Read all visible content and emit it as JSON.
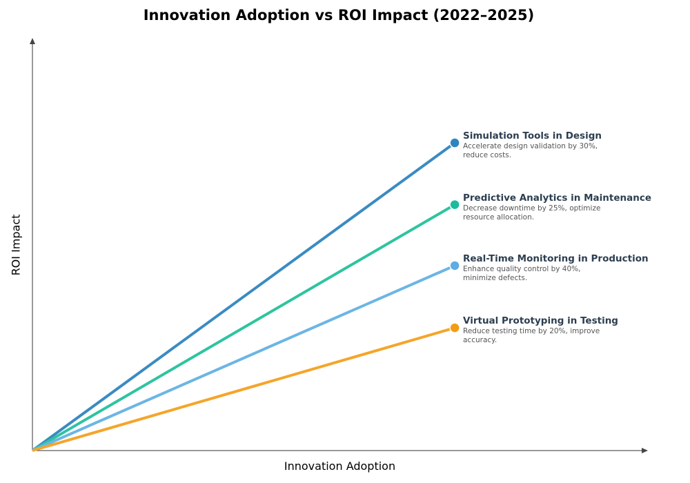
{
  "chart_data": {
    "type": "line",
    "title": "Innovation Adoption vs ROI Impact (2022–2025)",
    "xlabel": "Innovation Adoption",
    "ylabel": "ROI Impact",
    "xlim": [
      0,
      1
    ],
    "ylim": [
      0,
      1
    ],
    "grid": false,
    "legend": "none (inline annotations at line ends)",
    "series": [
      {
        "name": "Simulation Tools in Design",
        "description": "Accelerate design validation by 30%, reduce costs.",
        "color": "#2e86c1",
        "x": [
          0,
          0.687
        ],
        "y": [
          0,
          0.747
        ]
      },
      {
        "name": "Predictive Analytics in Maintenance",
        "description": "Decrease downtime by 25%, optimize resource allocation.",
        "color": "#1abc9c",
        "x": [
          0,
          0.687
        ],
        "y": [
          0,
          0.597
        ]
      },
      {
        "name": "Real-Time Monitoring in Production",
        "description": "Enhance quality control by 40%, minimize defects.",
        "color": "#5dade2",
        "x": [
          0,
          0.687
        ],
        "y": [
          0,
          0.449
        ]
      },
      {
        "name": "Virtual Prototyping in Testing",
        "description": "Reduce testing time by 20%, improve accuracy.",
        "color": "#f39c12",
        "x": [
          0,
          0.687
        ],
        "y": [
          0,
          0.298
        ]
      }
    ]
  }
}
